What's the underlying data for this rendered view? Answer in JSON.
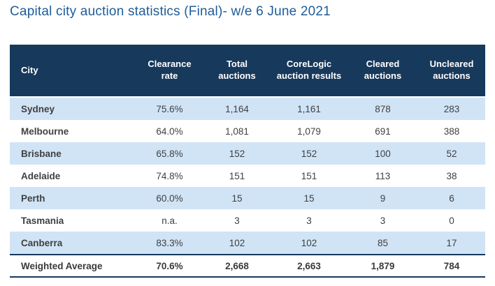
{
  "title": "Capital city auction statistics (Final)- w/e 6 June 2021",
  "colors": {
    "title_text": "#1F5C99",
    "header_background": "#17395B",
    "header_text": "#FFFFFF",
    "striped_row_background": "#D0E4F6",
    "body_text": "#404040",
    "footer_rule": "#17395B"
  },
  "table": {
    "columns": [
      "City",
      "Clearance rate",
      "Total auctions",
      "CoreLogic auction results",
      "Cleared auctions",
      "Uncleared auctions"
    ],
    "rows": [
      {
        "city": "Sydney",
        "clearance_rate": "75.6%",
        "total_auctions": "1,164",
        "corelogic_auction_results": "1,161",
        "cleared_auctions": "878",
        "uncleared_auctions": "283"
      },
      {
        "city": "Melbourne",
        "clearance_rate": "64.0%",
        "total_auctions": "1,081",
        "corelogic_auction_results": "1,079",
        "cleared_auctions": "691",
        "uncleared_auctions": "388"
      },
      {
        "city": "Brisbane",
        "clearance_rate": "65.8%",
        "total_auctions": "152",
        "corelogic_auction_results": "152",
        "cleared_auctions": "100",
        "uncleared_auctions": "52"
      },
      {
        "city": "Adelaide",
        "clearance_rate": "74.8%",
        "total_auctions": "151",
        "corelogic_auction_results": "151",
        "cleared_auctions": "113",
        "uncleared_auctions": "38"
      },
      {
        "city": "Perth",
        "clearance_rate": "60.0%",
        "total_auctions": "15",
        "corelogic_auction_results": "15",
        "cleared_auctions": "9",
        "uncleared_auctions": "6"
      },
      {
        "city": "Tasmania",
        "clearance_rate": "n.a.",
        "total_auctions": "3",
        "corelogic_auction_results": "3",
        "cleared_auctions": "3",
        "uncleared_auctions": "0"
      },
      {
        "city": "Canberra",
        "clearance_rate": "83.3%",
        "total_auctions": "102",
        "corelogic_auction_results": "102",
        "cleared_auctions": "85",
        "uncleared_auctions": "17"
      }
    ],
    "footer": {
      "city": "Weighted Average",
      "clearance_rate": "70.6%",
      "total_auctions": "2,668",
      "corelogic_auction_results": "2,663",
      "cleared_auctions": "1,879",
      "uncleared_auctions": "784"
    }
  },
  "chart_data": {
    "type": "table",
    "title": "Capital city auction statistics (Final)- w/e 6 June 2021",
    "columns": [
      "City",
      "Clearance rate",
      "Total auctions",
      "CoreLogic auction results",
      "Cleared auctions",
      "Uncleared auctions"
    ],
    "rows": [
      [
        "Sydney",
        "75.6%",
        "1,164",
        "1,161",
        "878",
        "283"
      ],
      [
        "Melbourne",
        "64.0%",
        "1,081",
        "1,079",
        "691",
        "388"
      ],
      [
        "Brisbane",
        "65.8%",
        "152",
        "152",
        "100",
        "52"
      ],
      [
        "Adelaide",
        "74.8%",
        "151",
        "151",
        "113",
        "38"
      ],
      [
        "Perth",
        "60.0%",
        "15",
        "15",
        "9",
        "6"
      ],
      [
        "Tasmania",
        "n.a.",
        "3",
        "3",
        "3",
        "0"
      ],
      [
        "Canberra",
        "83.3%",
        "102",
        "102",
        "85",
        "17"
      ],
      [
        "Weighted Average",
        "70.6%",
        "2,668",
        "2,663",
        "1,879",
        "784"
      ]
    ],
    "numeric_rows": [
      {
        "city": "Sydney",
        "clearance_rate_pct": 75.6,
        "total_auctions": 1164,
        "corelogic_auction_results": 1161,
        "cleared_auctions": 878,
        "uncleared_auctions": 283
      },
      {
        "city": "Melbourne",
        "clearance_rate_pct": 64.0,
        "total_auctions": 1081,
        "corelogic_auction_results": 1079,
        "cleared_auctions": 691,
        "uncleared_auctions": 388
      },
      {
        "city": "Brisbane",
        "clearance_rate_pct": 65.8,
        "total_auctions": 152,
        "corelogic_auction_results": 152,
        "cleared_auctions": 100,
        "uncleared_auctions": 52
      },
      {
        "city": "Adelaide",
        "clearance_rate_pct": 74.8,
        "total_auctions": 151,
        "corelogic_auction_results": 151,
        "cleared_auctions": 113,
        "uncleared_auctions": 38
      },
      {
        "city": "Perth",
        "clearance_rate_pct": 60.0,
        "total_auctions": 15,
        "corelogic_auction_results": 15,
        "cleared_auctions": 9,
        "uncleared_auctions": 6
      },
      {
        "city": "Tasmania",
        "clearance_rate_pct": null,
        "total_auctions": 3,
        "corelogic_auction_results": 3,
        "cleared_auctions": 3,
        "uncleared_auctions": 0
      },
      {
        "city": "Canberra",
        "clearance_rate_pct": 83.3,
        "total_auctions": 102,
        "corelogic_auction_results": 102,
        "cleared_auctions": 85,
        "uncleared_auctions": 17
      },
      {
        "city": "Weighted Average",
        "clearance_rate_pct": 70.6,
        "total_auctions": 2668,
        "corelogic_auction_results": 2663,
        "cleared_auctions": 1879,
        "uncleared_auctions": 784
      }
    ]
  }
}
